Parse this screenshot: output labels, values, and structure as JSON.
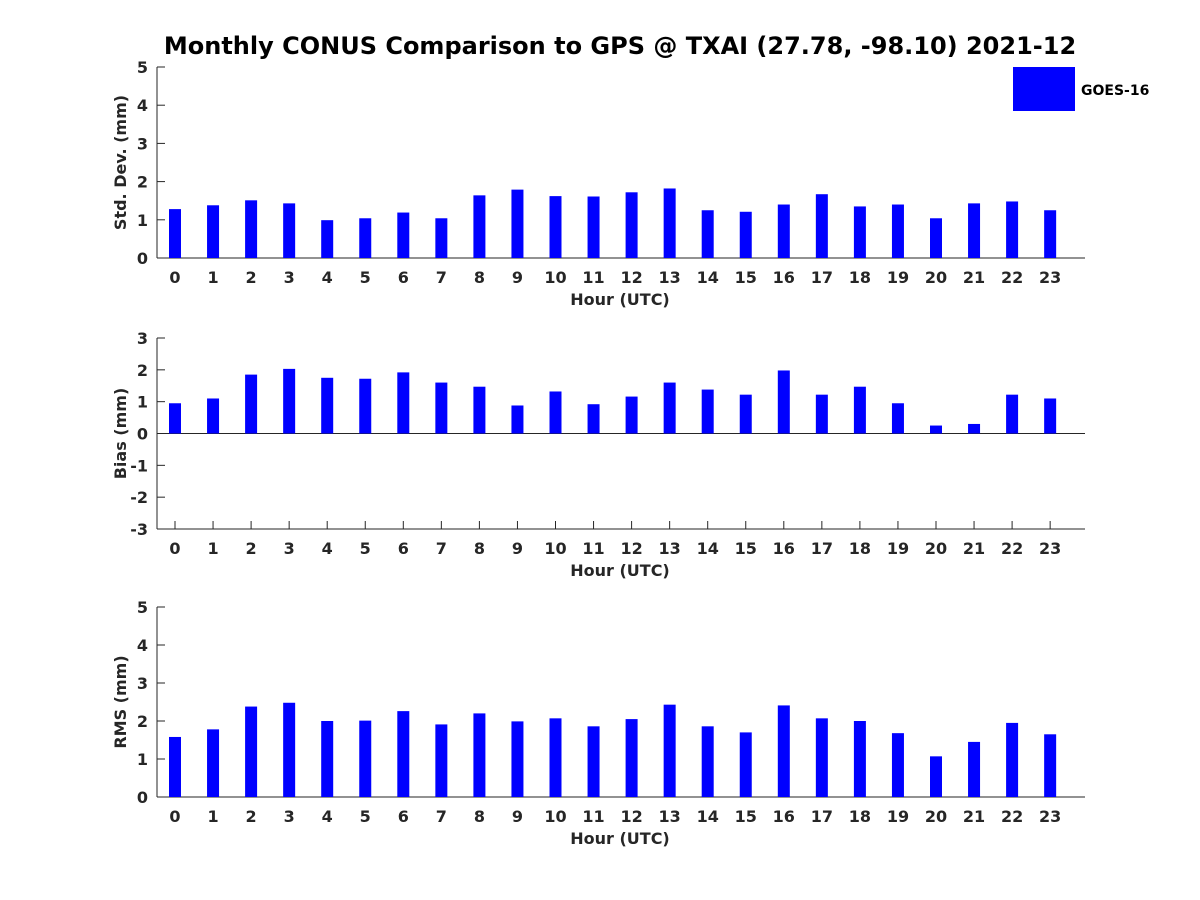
{
  "title": "Monthly CONUS Comparison to GPS @ TXAI (27.78, -98.10) 2021-12",
  "legend": {
    "label": "GOES-16",
    "color": "#0000ff"
  },
  "colors": {
    "bar": "#0000ff",
    "axis": "#262626"
  },
  "chart_data": [
    {
      "type": "bar",
      "xlabel": "Hour (UTC)",
      "ylabel": "Std. Dev. (mm)",
      "ylim": [
        0,
        5
      ],
      "yticks": [
        "0",
        "1",
        "2",
        "3",
        "4",
        "5"
      ],
      "categories": [
        "0",
        "1",
        "2",
        "3",
        "4",
        "5",
        "6",
        "7",
        "8",
        "9",
        "10",
        "11",
        "12",
        "13",
        "14",
        "15",
        "16",
        "17",
        "18",
        "19",
        "20",
        "21",
        "22",
        "23"
      ],
      "series": [
        {
          "name": "GOES-16",
          "values": [
            1.28,
            1.38,
            1.51,
            1.43,
            0.99,
            1.04,
            1.19,
            1.04,
            1.64,
            1.79,
            1.62,
            1.61,
            1.72,
            1.82,
            1.25,
            1.21,
            1.4,
            1.67,
            1.35,
            1.4,
            1.04,
            1.43,
            1.48,
            1.25
          ]
        }
      ]
    },
    {
      "type": "bar",
      "xlabel": "Hour (UTC)",
      "ylabel": "Bias (mm)",
      "ylim": [
        -3,
        3
      ],
      "yticks": [
        "-3",
        "-2",
        "-1",
        "0",
        "1",
        "2",
        "3"
      ],
      "categories": [
        "0",
        "1",
        "2",
        "3",
        "4",
        "5",
        "6",
        "7",
        "8",
        "9",
        "10",
        "11",
        "12",
        "13",
        "14",
        "15",
        "16",
        "17",
        "18",
        "19",
        "20",
        "21",
        "22",
        "23"
      ],
      "series": [
        {
          "name": "GOES-16",
          "values": [
            0.95,
            1.1,
            1.85,
            2.03,
            1.75,
            1.72,
            1.92,
            1.6,
            1.47,
            0.88,
            1.32,
            0.92,
            1.16,
            1.6,
            1.38,
            1.22,
            1.98,
            1.22,
            1.47,
            0.95,
            0.25,
            0.3,
            1.22,
            1.1
          ]
        }
      ]
    },
    {
      "type": "bar",
      "xlabel": "Hour (UTC)",
      "ylabel": "RMS (mm)",
      "ylim": [
        0,
        5
      ],
      "yticks": [
        "0",
        "1",
        "2",
        "3",
        "4",
        "5"
      ],
      "categories": [
        "0",
        "1",
        "2",
        "3",
        "4",
        "5",
        "6",
        "7",
        "8",
        "9",
        "10",
        "11",
        "12",
        "13",
        "14",
        "15",
        "16",
        "17",
        "18",
        "19",
        "20",
        "21",
        "22",
        "23"
      ],
      "series": [
        {
          "name": "GOES-16",
          "values": [
            1.58,
            1.78,
            2.38,
            2.48,
            2.0,
            2.01,
            2.26,
            1.91,
            2.2,
            1.99,
            2.07,
            1.86,
            2.05,
            2.43,
            1.86,
            1.7,
            2.41,
            2.07,
            2.0,
            1.68,
            1.07,
            1.45,
            1.95,
            1.65
          ]
        }
      ]
    }
  ]
}
